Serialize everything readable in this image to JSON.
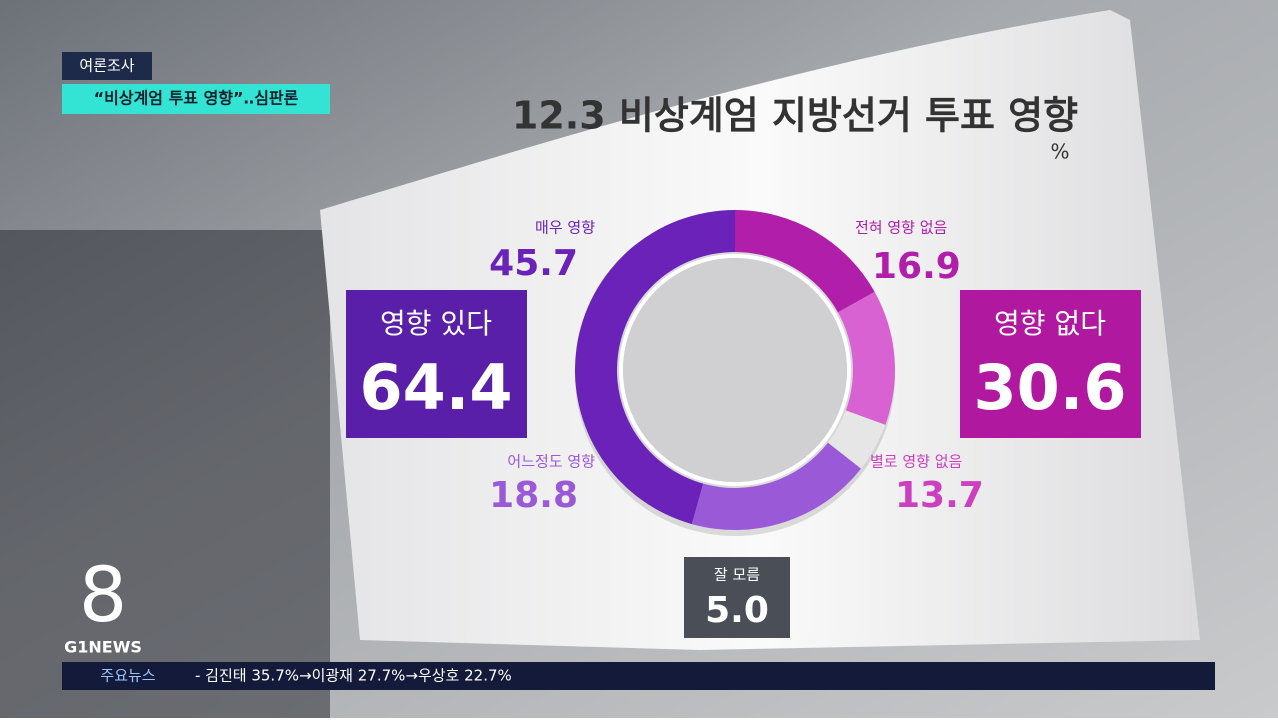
{
  "overlay": {
    "tag": "여론조사",
    "headline": "“비상계엄 투표 영향”‥심판론",
    "logo_number": "8",
    "logo_text": "G1NEWS",
    "ticker_label": "주요뉴스",
    "ticker_text": "- 김진태 35.7%→이광재 27.7%→우상호 22.7%"
  },
  "chart_data": {
    "type": "pie",
    "donut": true,
    "title": "12.3 비상계엄 지방선거 투표 영향",
    "unit": "%",
    "categories": [
      "전혀 영향 없음",
      "별로 영향 없음",
      "잘 모름",
      "어느정도 영향",
      "매우 영향"
    ],
    "values": [
      16.9,
      13.7,
      5,
      18.8,
      45.7
    ],
    "value_labels": [
      "16.9",
      "13.7",
      "5.0",
      "18.8",
      "45.7"
    ],
    "colors": [
      "#b01eaa",
      "#d862d2",
      "#e6e6e6",
      "#9a5ad8",
      "#6a22b8"
    ],
    "groups": [
      {
        "name": "영향 있다",
        "value": 64.4,
        "color": "#5a1fa8"
      },
      {
        "name": "영향 없다",
        "value": 30.6,
        "color": "#b0189f"
      }
    ]
  }
}
